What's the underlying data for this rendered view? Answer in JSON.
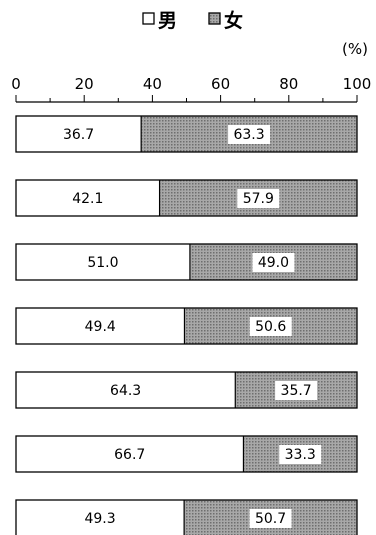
{
  "chart_data": {
    "type": "bar",
    "orientation": "horizontal",
    "stacked": "percent",
    "unit": "(%)",
    "xlim": [
      0,
      100
    ],
    "x_ticks": [
      "0",
      "20",
      "40",
      "60",
      "80",
      "100"
    ],
    "legend": {
      "placement": "top-center"
    },
    "series": [
      {
        "name": "男",
        "values": [
          36.7,
          42.1,
          51.0,
          49.4,
          64.3,
          66.7,
          49.3
        ],
        "labels": [
          "36.7",
          "42.1",
          "51.0",
          "49.4",
          "64.3",
          "66.7",
          "49.3"
        ]
      },
      {
        "name": "女",
        "values": [
          63.3,
          57.9,
          49.0,
          50.6,
          35.7,
          33.3,
          50.7
        ],
        "labels": [
          "63.3",
          "57.9",
          "49.0",
          "50.6",
          "35.7",
          "33.3",
          "50.7"
        ]
      }
    ],
    "colors": {
      "male": "#ffffff",
      "female_fill": "#a8a8a8",
      "female_dot": "#6e6e6e",
      "border": "#000000"
    }
  }
}
